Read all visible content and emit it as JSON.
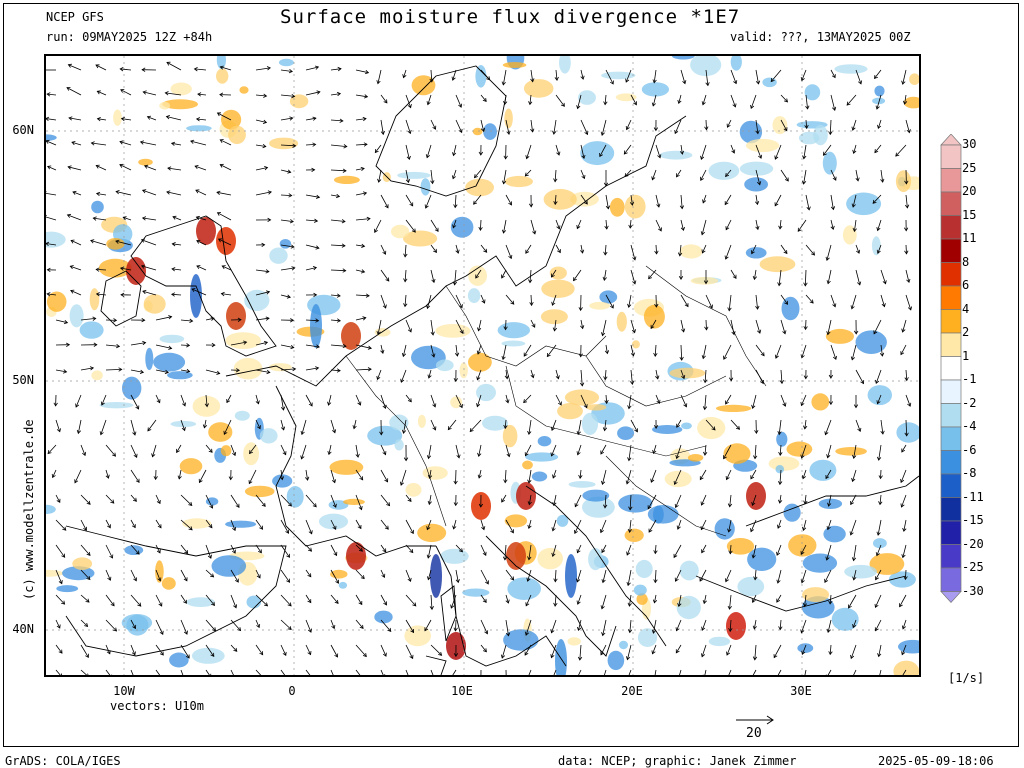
{
  "header": {
    "model": "NCEP GFS",
    "run": "run: 09MAY2025 12Z +84h",
    "title": "Surface moisture flux divergence *1E7",
    "valid": "valid: ???, 13MAY2025 00Z"
  },
  "axes": {
    "lat_labels": [
      "60N",
      "50N",
      "40N"
    ],
    "lon_labels": [
      "10W",
      "0",
      "10E",
      "20E",
      "30E"
    ]
  },
  "vector_caption": "vectors: U10m",
  "vector_scale_label": "20",
  "side_text": "(c) www.modellzentrale.de",
  "colorbar": {
    "labels": [
      "30",
      "25",
      "20",
      "15",
      "11",
      "8",
      "6",
      "4",
      "2",
      "1",
      "-1",
      "-2",
      "-4",
      "-6",
      "-8",
      "-11",
      "-15",
      "-20",
      "-25",
      "-30"
    ],
    "colors": [
      "#f2c4c4",
      "#e89898",
      "#d06060",
      "#b83030",
      "#a00000",
      "#e03000",
      "#ff7a00",
      "#ffb020",
      "#ffe8a8",
      "#ffffff",
      "#e8f4ff",
      "#b0def0",
      "#78c0ec",
      "#3c90e0",
      "#1c5fc8",
      "#1030a0",
      "#2020a8",
      "#4a3ac8",
      "#7a6ae0",
      "#a99cf0"
    ],
    "units": "[1/s]"
  },
  "footer": {
    "left": "GrADS: COLA/IGES",
    "center": "data: NCEP; graphic: Janek Zimmer",
    "right": "2025-05-09-18:06"
  }
}
